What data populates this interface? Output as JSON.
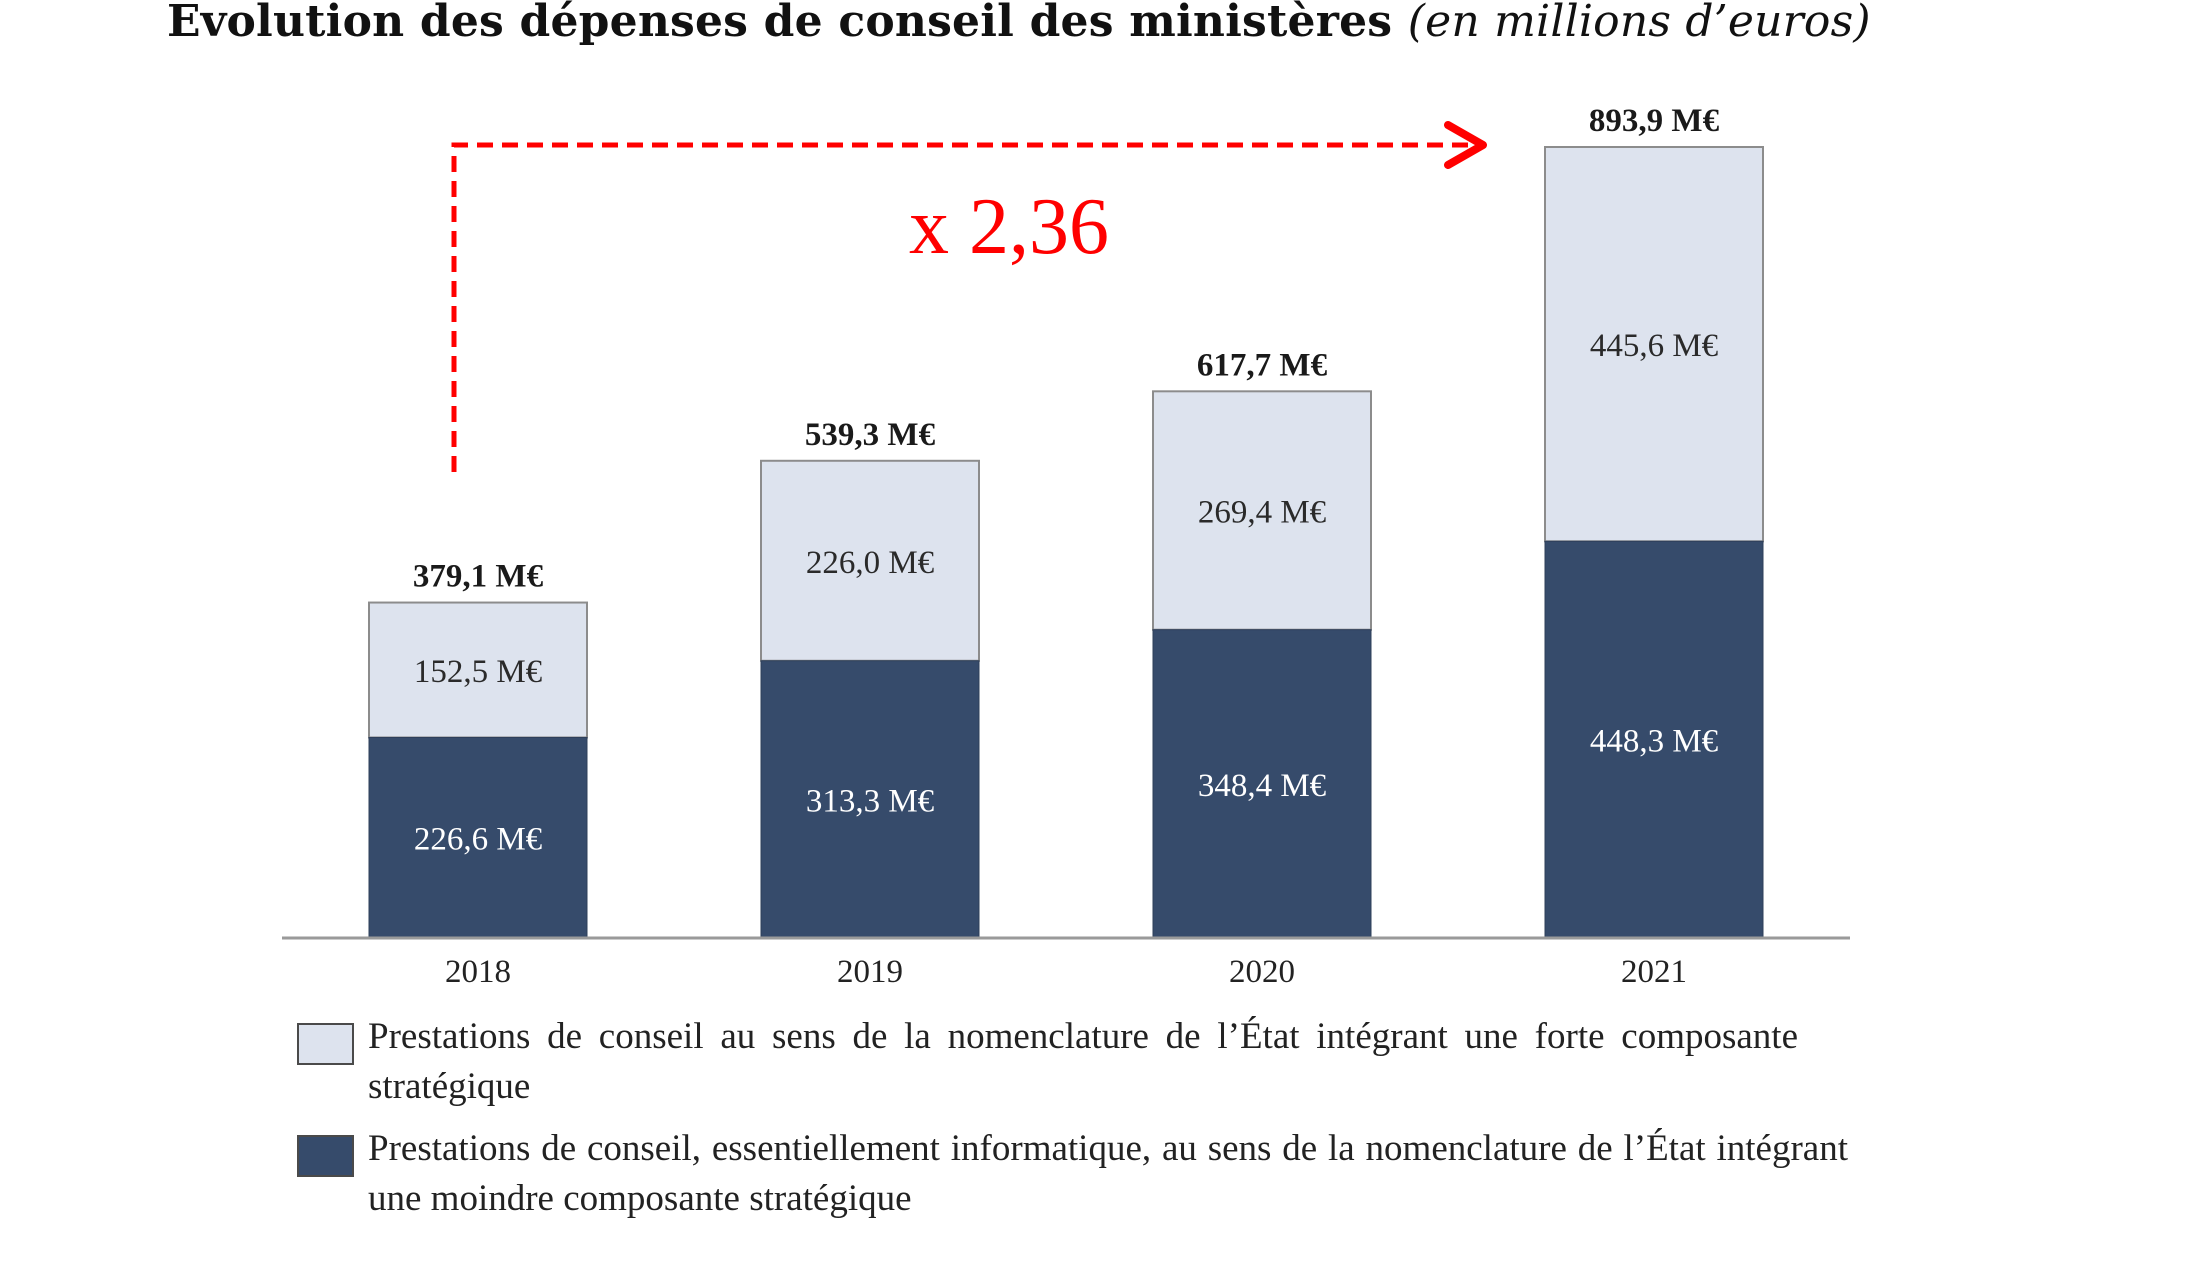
{
  "title": {
    "main": "Evolution des dépenses de conseil des ministères",
    "unit": "(en millions d’euros)"
  },
  "colors": {
    "strategic": "#dde3ee",
    "it": "#364b6b",
    "axis": "#9a9a9a",
    "annotation": "#ff0000",
    "bar_border": "#8c8c8c"
  },
  "chart_data": {
    "type": "bar",
    "stacked": true,
    "title": "Evolution des dépenses de conseil des ministères (en millions d’euros)",
    "xlabel": "",
    "ylabel": "",
    "categories": [
      "2018",
      "2019",
      "2020",
      "2021"
    ],
    "series": [
      {
        "name": "Prestations de conseil, essentiellement informatique, au sens de la nomenclature de l’État intégrant une moindre composante stratégique",
        "key": "it",
        "values": [
          226.6,
          313.3,
          348.4,
          448.3
        ],
        "labels": [
          "226,6 M€",
          "313,3 M€",
          "348,4 M€",
          "448,3 M€"
        ]
      },
      {
        "name": "Prestations de conseil au sens de la nomenclature de l’État intégrant une forte composante stratégique",
        "key": "strategic",
        "values": [
          152.5,
          226.0,
          269.4,
          445.6
        ],
        "labels": [
          "152,5 M€",
          "226,0 M€",
          "269,4 M€",
          "445,6 M€"
        ]
      }
    ],
    "totals": [
      379.1,
      539.3,
      617.7,
      893.9
    ],
    "total_labels": [
      "379,1 M€",
      "539,3 M€",
      "617,7 M€",
      "893,9 M€"
    ],
    "ylim": [
      0,
      900
    ],
    "grid": false,
    "y_axis_visible": false,
    "legend_position": "bottom",
    "annotation": {
      "text": "x 2,36",
      "type": "dashed-arrow",
      "from_category": "2018",
      "to_category": "2021",
      "ratio": 2.36
    }
  },
  "legend": [
    {
      "key": "strategic",
      "label": "Prestations de conseil au sens de la nomenclature de l’État intégrant une forte composante stratégique"
    },
    {
      "key": "it",
      "label": "Prestations de conseil, essentiellement informatique, au sens de la nomenclature de l’État intégrant une moindre composante stratégique"
    }
  ]
}
